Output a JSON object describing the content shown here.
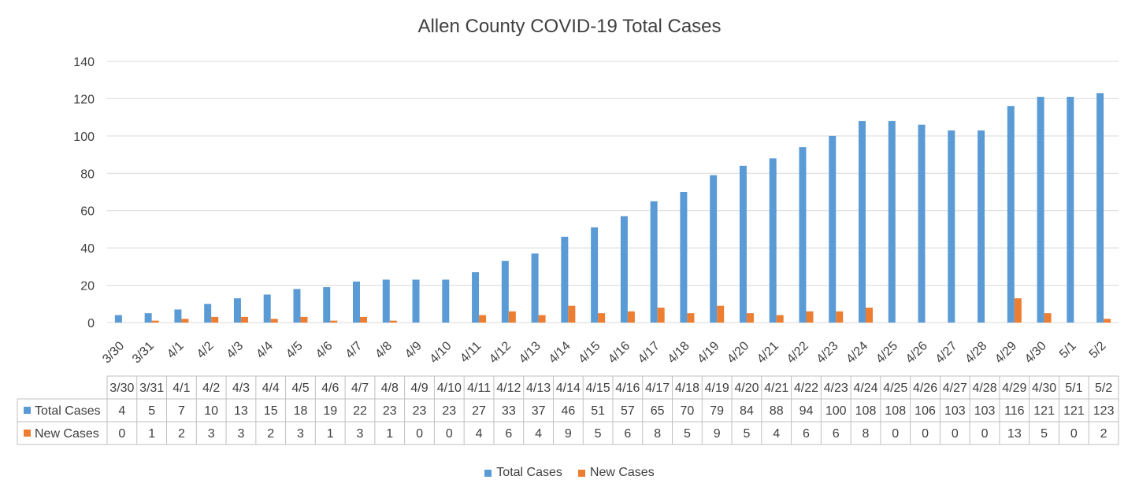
{
  "chart_data": {
    "type": "bar",
    "title": "Allen County COVID-19 Total Cases",
    "categories": [
      "3/30",
      "3/31",
      "4/1",
      "4/2",
      "4/3",
      "4/4",
      "4/5",
      "4/6",
      "4/7",
      "4/8",
      "4/9",
      "4/10",
      "4/11",
      "4/12",
      "4/13",
      "4/14",
      "4/15",
      "4/16",
      "4/17",
      "4/18",
      "4/19",
      "4/20",
      "4/21",
      "4/22",
      "4/23",
      "4/24",
      "4/25",
      "4/26",
      "4/27",
      "4/28",
      "4/29",
      "4/30",
      "5/1",
      "5/2"
    ],
    "series": [
      {
        "name": "Total Cases",
        "color": "#5b9bd5",
        "values": [
          4,
          5,
          7,
          10,
          13,
          15,
          18,
          19,
          22,
          23,
          23,
          23,
          27,
          33,
          37,
          46,
          51,
          57,
          65,
          70,
          79,
          84,
          88,
          94,
          100,
          108,
          108,
          106,
          103,
          103,
          116,
          121,
          121,
          123
        ]
      },
      {
        "name": "New Cases",
        "color": "#ed7d31",
        "values": [
          0,
          1,
          2,
          3,
          3,
          2,
          3,
          1,
          3,
          1,
          0,
          0,
          4,
          6,
          4,
          9,
          5,
          6,
          8,
          5,
          9,
          5,
          4,
          6,
          6,
          8,
          0,
          0,
          0,
          0,
          13,
          5,
          0,
          2
        ]
      }
    ],
    "ylim": [
      0,
      140
    ],
    "yticks": [
      0,
      20,
      40,
      60,
      80,
      100,
      120,
      140
    ],
    "grid": true,
    "legend": "bottom",
    "data_table": true
  }
}
